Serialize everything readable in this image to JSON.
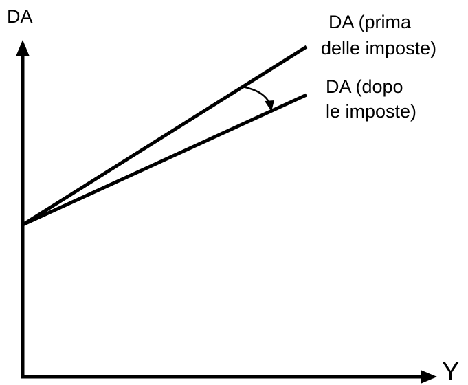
{
  "axes": {
    "y_label": "DA",
    "x_label": "Y"
  },
  "lines": [
    {
      "label_lines": [
        "DA (prima",
        "delle imposte)"
      ]
    },
    {
      "label_lines": [
        "DA (dopo",
        "le imposte)"
      ]
    }
  ]
}
